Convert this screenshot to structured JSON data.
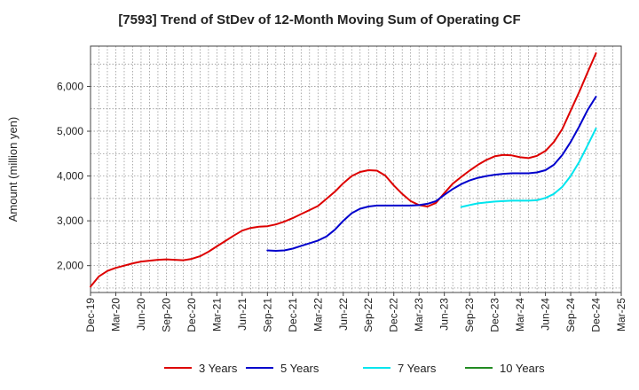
{
  "title": "[7593]  Trend of StDev of 12-Month Moving Sum of Operating CF",
  "chart_data": {
    "type": "line",
    "title": "[7593]  Trend of StDev of 12-Month Moving Sum of Operating CF",
    "xlabel": "",
    "ylabel": "Amount (million yen)",
    "ylim": [
      1400,
      6900
    ],
    "yticks": [
      2000,
      3000,
      4000,
      5000,
      6000
    ],
    "ytick_labels": [
      "2,000",
      "3,000",
      "4,000",
      "5,000",
      "6,000"
    ],
    "x_range": [
      "2019-12",
      "2025-03"
    ],
    "xtick_labels": [
      "Dec-19",
      "Mar-20",
      "Jun-20",
      "Sep-20",
      "Dec-20",
      "Mar-21",
      "Jun-21",
      "Sep-21",
      "Dec-21",
      "Mar-22",
      "Jun-22",
      "Sep-22",
      "Dec-22",
      "Mar-23",
      "Jun-23",
      "Sep-23",
      "Dec-23",
      "Mar-24",
      "Jun-24",
      "Sep-24",
      "Dec-24",
      "Mar-25"
    ],
    "grid": true,
    "legend_position": "bottom",
    "series": [
      {
        "name": "3 Years",
        "color": "#dd0000",
        "x": [
          "2019-12",
          "2020-01",
          "2020-02",
          "2020-03",
          "2020-04",
          "2020-05",
          "2020-06",
          "2020-07",
          "2020-08",
          "2020-09",
          "2020-10",
          "2020-11",
          "2020-12",
          "2021-01",
          "2021-02",
          "2021-03",
          "2021-04",
          "2021-05",
          "2021-06",
          "2021-07",
          "2021-08",
          "2021-09",
          "2021-10",
          "2021-11",
          "2021-12",
          "2022-01",
          "2022-02",
          "2022-03",
          "2022-04",
          "2022-05",
          "2022-06",
          "2022-07",
          "2022-08",
          "2022-09",
          "2022-10",
          "2022-11",
          "2022-12",
          "2023-01",
          "2023-02",
          "2023-03",
          "2023-04",
          "2023-05",
          "2023-06",
          "2023-07",
          "2023-08",
          "2023-09",
          "2023-10",
          "2023-11",
          "2023-12",
          "2024-01",
          "2024-02",
          "2024-03",
          "2024-04",
          "2024-05",
          "2024-06",
          "2024-07",
          "2024-08",
          "2024-09",
          "2024-10",
          "2024-11",
          "2024-12"
        ],
        "values": [
          1530,
          1760,
          1880,
          1950,
          2000,
          2050,
          2090,
          2110,
          2130,
          2140,
          2130,
          2120,
          2150,
          2210,
          2310,
          2430,
          2550,
          2670,
          2780,
          2840,
          2870,
          2880,
          2920,
          2980,
          3060,
          3150,
          3240,
          3330,
          3490,
          3650,
          3840,
          4000,
          4090,
          4130,
          4120,
          4010,
          3790,
          3600,
          3440,
          3350,
          3320,
          3400,
          3620,
          3830,
          3980,
          4120,
          4250,
          4360,
          4440,
          4470,
          4460,
          4420,
          4400,
          4450,
          4560,
          4760,
          5050,
          5460,
          5870,
          6310,
          6740
        ]
      },
      {
        "name": "5 Years",
        "color": "#0000cc",
        "x": [
          "2021-09",
          "2021-10",
          "2021-11",
          "2021-12",
          "2022-01",
          "2022-02",
          "2022-03",
          "2022-04",
          "2022-05",
          "2022-06",
          "2022-07",
          "2022-08",
          "2022-09",
          "2022-10",
          "2022-11",
          "2022-12",
          "2023-01",
          "2023-02",
          "2023-03",
          "2023-04",
          "2023-05",
          "2023-06",
          "2023-07",
          "2023-08",
          "2023-09",
          "2023-10",
          "2023-11",
          "2023-12",
          "2024-01",
          "2024-02",
          "2024-03",
          "2024-04",
          "2024-05",
          "2024-06",
          "2024-07",
          "2024-08",
          "2024-09",
          "2024-10",
          "2024-11",
          "2024-12"
        ],
        "values": [
          2340,
          2330,
          2340,
          2380,
          2440,
          2500,
          2560,
          2650,
          2800,
          3000,
          3170,
          3270,
          3320,
          3340,
          3340,
          3340,
          3340,
          3340,
          3350,
          3380,
          3440,
          3580,
          3710,
          3820,
          3900,
          3960,
          4000,
          4030,
          4050,
          4060,
          4060,
          4060,
          4080,
          4130,
          4250,
          4470,
          4760,
          5100,
          5470,
          5770
        ]
      },
      {
        "name": "7 Years",
        "color": "#00e5ee",
        "x": [
          "2023-08",
          "2023-09",
          "2023-10",
          "2023-11",
          "2023-12",
          "2024-01",
          "2024-02",
          "2024-03",
          "2024-04",
          "2024-05",
          "2024-06",
          "2024-07",
          "2024-08",
          "2024-09",
          "2024-10",
          "2024-11",
          "2024-12"
        ],
        "values": [
          3310,
          3350,
          3390,
          3410,
          3430,
          3440,
          3450,
          3450,
          3450,
          3460,
          3510,
          3600,
          3760,
          4000,
          4310,
          4680,
          5060
        ]
      },
      {
        "name": "10 Years",
        "color": "#228b22",
        "x": [],
        "values": []
      }
    ]
  }
}
